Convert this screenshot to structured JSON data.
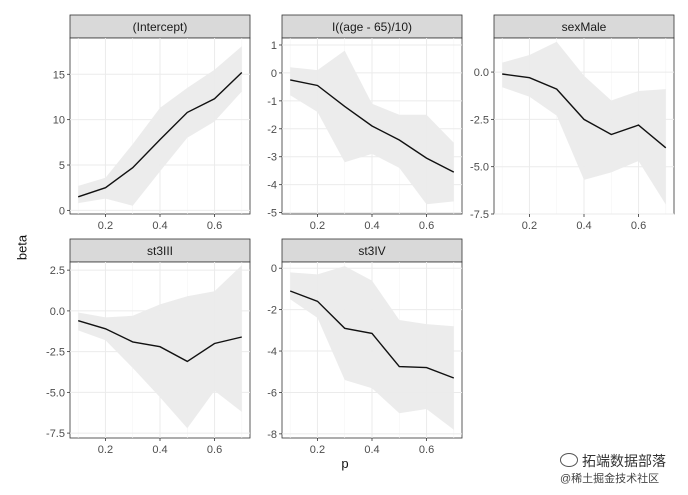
{
  "chart_data": [
    {
      "type": "line",
      "title": "(Intercept)",
      "x": [
        0.1,
        0.2,
        0.3,
        0.4,
        0.5,
        0.6,
        0.7
      ],
      "series": [
        {
          "values": [
            1.5,
            2.5,
            4.7,
            7.8,
            10.8,
            12.3,
            15.2
          ]
        }
      ],
      "ribbon": {
        "lower": [
          0.8,
          1.3,
          0.5,
          4.3,
          8.0,
          9.8,
          13.1
        ],
        "upper": [
          2.7,
          3.6,
          7.3,
          11.3,
          13.5,
          15.5,
          18.1
        ]
      },
      "xlim": [
        0.07,
        0.73
      ],
      "ylim": [
        -0.4,
        19.0
      ],
      "xticks": [
        "0.2",
        "0.4",
        "0.6"
      ],
      "yticks": [
        {
          "v": 0,
          "label": "0"
        },
        {
          "v": 5,
          "label": "5"
        },
        {
          "v": 10,
          "label": "10"
        },
        {
          "v": 15,
          "label": "15"
        }
      ]
    },
    {
      "type": "line",
      "title": "I((age - 65)/10)",
      "x": [
        0.1,
        0.2,
        0.3,
        0.4,
        0.5,
        0.6,
        0.7
      ],
      "series": [
        {
          "values": [
            -0.25,
            -0.45,
            -1.2,
            -1.9,
            -2.4,
            -3.05,
            -3.55
          ]
        }
      ],
      "ribbon": {
        "lower": [
          -0.8,
          -1.4,
          -3.2,
          -2.9,
          -3.4,
          -4.7,
          -4.6
        ],
        "upper": [
          0.2,
          0.1,
          0.8,
          -1.1,
          -1.5,
          -1.5,
          -2.5
        ]
      },
      "xlim": [
        0.07,
        0.73
      ],
      "ylim": [
        -5.05,
        1.25
      ],
      "xticks": [
        "0.2",
        "0.4",
        "0.6"
      ],
      "yticks": [
        {
          "v": 1,
          "label": "1"
        },
        {
          "v": 0,
          "label": "0"
        },
        {
          "v": -1,
          "label": "-1"
        },
        {
          "v": -2,
          "label": "-2"
        },
        {
          "v": -3,
          "label": "-3"
        },
        {
          "v": -4,
          "label": "-4"
        },
        {
          "v": -5,
          "label": "-5"
        }
      ]
    },
    {
      "type": "line",
      "title": "sexMale",
      "x": [
        0.1,
        0.2,
        0.3,
        0.4,
        0.5,
        0.6,
        0.7
      ],
      "series": [
        {
          "values": [
            -0.1,
            -0.3,
            -0.9,
            -2.5,
            -3.3,
            -2.8,
            -4.0
          ]
        }
      ],
      "ribbon": {
        "lower": [
          -0.8,
          -1.3,
          -2.3,
          -5.7,
          -5.3,
          -4.7,
          -7.0
        ],
        "upper": [
          0.5,
          0.9,
          1.6,
          -0.2,
          -1.5,
          -1.0,
          -0.9
        ]
      },
      "xlim": [
        0.07,
        0.73
      ],
      "ylim": [
        -7.5,
        1.8
      ],
      "xticks": [
        "0.2",
        "0.4",
        "0.6"
      ],
      "yticks": [
        {
          "v": 0,
          "label": "0.0"
        },
        {
          "v": -2.5,
          "label": "-2.5"
        },
        {
          "v": -5,
          "label": "-5.0"
        },
        {
          "v": -7.5,
          "label": "-7.5"
        }
      ]
    },
    {
      "type": "line",
      "title": "st3III",
      "x": [
        0.1,
        0.2,
        0.3,
        0.4,
        0.5,
        0.6,
        0.7
      ],
      "series": [
        {
          "values": [
            -0.6,
            -1.1,
            -1.9,
            -2.2,
            -3.1,
            -2.0,
            -1.6
          ]
        }
      ],
      "ribbon": {
        "lower": [
          -1.2,
          -1.8,
          -3.5,
          -5.3,
          -7.2,
          -4.9,
          -6.2
        ],
        "upper": [
          -0.1,
          -0.4,
          -0.3,
          0.4,
          0.9,
          1.2,
          2.8
        ]
      },
      "xlim": [
        0.07,
        0.73
      ],
      "ylim": [
        -7.8,
        3.0
      ],
      "xticks": [
        "0.2",
        "0.4",
        "0.6"
      ],
      "yticks": [
        {
          "v": 2.5,
          "label": "2.5"
        },
        {
          "v": 0,
          "label": "0.0"
        },
        {
          "v": -2.5,
          "label": "-2.5"
        },
        {
          "v": -5,
          "label": "-5.0"
        },
        {
          "v": -7.5,
          "label": "-7.5"
        }
      ]
    },
    {
      "type": "line",
      "title": "st3IV",
      "x": [
        0.1,
        0.2,
        0.3,
        0.4,
        0.5,
        0.6,
        0.7
      ],
      "series": [
        {
          "values": [
            -1.1,
            -1.6,
            -2.9,
            -3.15,
            -4.75,
            -4.8,
            -5.3
          ]
        }
      ],
      "ribbon": {
        "lower": [
          -1.5,
          -2.4,
          -5.4,
          -5.8,
          -7.0,
          -6.8,
          -7.8
        ],
        "upper": [
          -0.2,
          -0.3,
          0.1,
          -0.6,
          -2.5,
          -2.7,
          -2.8
        ]
      },
      "xlim": [
        0.07,
        0.73
      ],
      "ylim": [
        -8.2,
        0.3
      ],
      "xticks": [
        "0.2",
        "0.4",
        "0.6"
      ],
      "yticks": [
        {
          "v": 0,
          "label": "0"
        },
        {
          "v": -2,
          "label": "-2"
        },
        {
          "v": -4,
          "label": "-4"
        },
        {
          "v": -6,
          "label": "-6"
        },
        {
          "v": -8,
          "label": "-8"
        }
      ]
    }
  ],
  "axes": {
    "xlabel": "p",
    "ylabel": "beta"
  },
  "colors": {
    "ribbon": "#ebebeb",
    "line": "#111111",
    "strip_fill": "#d9d9d9",
    "strip_border": "#333333",
    "grid": "#ebebeb"
  },
  "watermark": {
    "icon": "wechat-icon",
    "line1": "拓端数据部落",
    "line2": "@稀土掘金技术社区"
  }
}
